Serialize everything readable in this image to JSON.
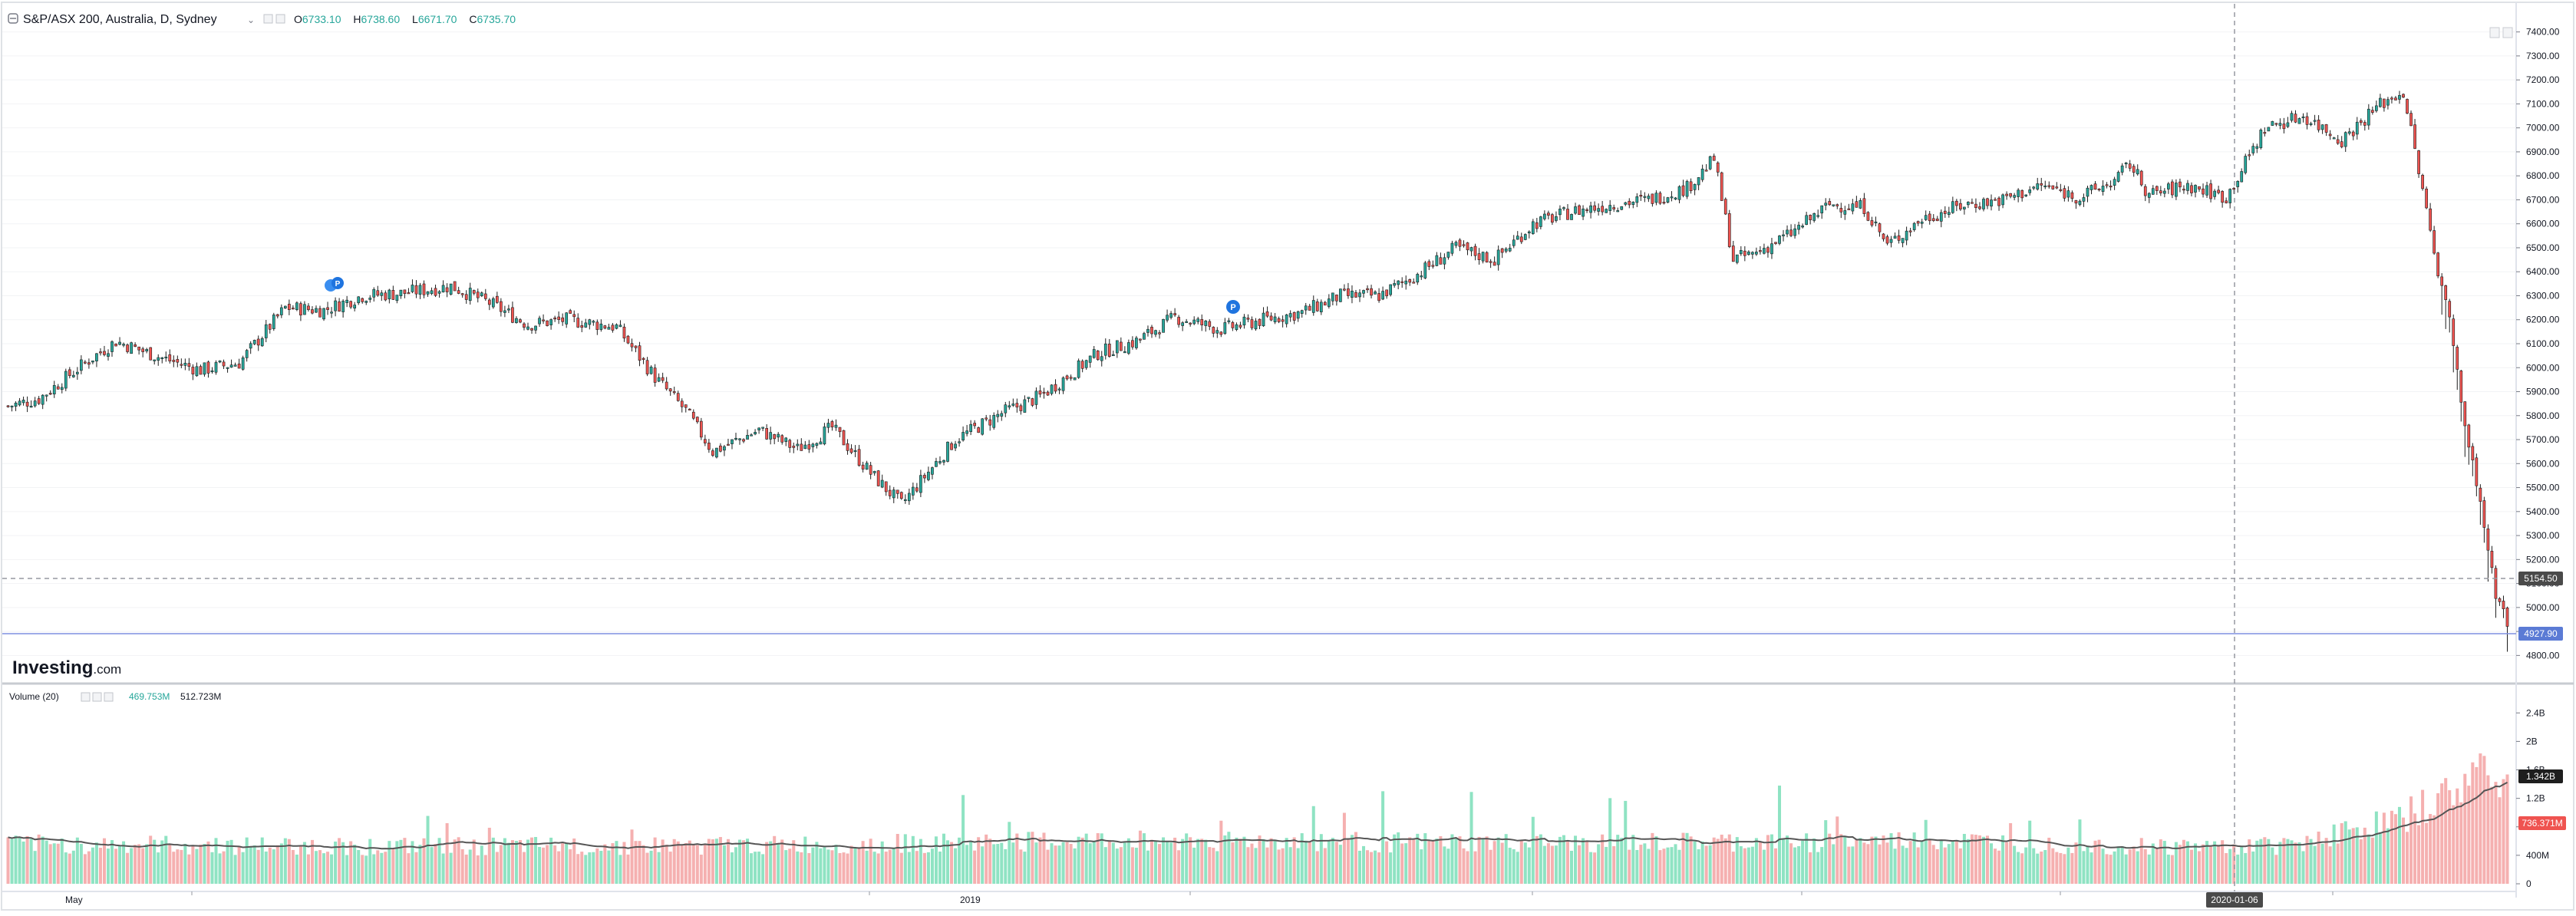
{
  "header": {
    "symbol": "S&P/ASX 200, Australia, D, Sydney",
    "dropdown_glyph": "⌄",
    "ohlc": [
      {
        "k": "O",
        "v": "6733.10"
      },
      {
        "k": "H",
        "v": "6738.60"
      },
      {
        "k": "L",
        "v": "6671.70"
      },
      {
        "k": "C",
        "v": "6735.70"
      }
    ]
  },
  "logo": {
    "bold": "Investing",
    "light": ".com"
  },
  "volume_header": {
    "title": "Volume (20)",
    "vol": "469.753M",
    "ma": "512.723M"
  },
  "price_axis": {
    "ticks": [
      "7400.00",
      "7300.00",
      "7200.00",
      "7100.00",
      "7000.00",
      "6900.00",
      "6800.00",
      "6700.00",
      "6600.00",
      "6500.00",
      "6400.00",
      "6300.00",
      "6200.00",
      "6100.00",
      "6000.00",
      "5900.00",
      "5800.00",
      "5700.00",
      "5600.00",
      "5500.00",
      "5400.00",
      "5300.00",
      "5200.00",
      "5100.00",
      "5000.00",
      "4900.00",
      "4800.00"
    ]
  },
  "volume_axis": {
    "ticks": [
      "2.4B",
      "2B",
      "1.6B",
      "1.2B",
      "800M",
      "400M",
      "0"
    ]
  },
  "crosshair": {
    "price_label": "5154.50",
    "date_label": "2020-01-06",
    "volume_label": "1.342B"
  },
  "last_price_label": "4927.90",
  "last_volume_label": "736.371M",
  "time_axis": {
    "labels": [
      "May",
      "2019"
    ]
  },
  "colors": {
    "up": "#26a69a",
    "down": "#ef5350",
    "vol_up": "#8fe3c3",
    "vol_down": "#f5b0b0",
    "ma": "#555555",
    "last": "#5b7bd5"
  },
  "chart_data": {
    "type": "candlestick",
    "title": "S&P/ASX 200, Australia, D, Sydney",
    "x_range": [
      "2018-04",
      "2020-03"
    ],
    "price_ylim": [
      4750,
      7450
    ],
    "volume_ylim": [
      0,
      2500000000
    ],
    "volume_ma_period": 20,
    "price_anchors": [
      [
        0,
        5840
      ],
      [
        8,
        5870
      ],
      [
        20,
        6020
      ],
      [
        28,
        6110
      ],
      [
        40,
        6040
      ],
      [
        50,
        5990
      ],
      [
        60,
        6020
      ],
      [
        72,
        6250
      ],
      [
        82,
        6240
      ],
      [
        92,
        6300
      ],
      [
        102,
        6310
      ],
      [
        115,
        6340
      ],
      [
        125,
        6270
      ],
      [
        135,
        6180
      ],
      [
        145,
        6200
      ],
      [
        158,
        6170
      ],
      [
        168,
        5960
      ],
      [
        176,
        5820
      ],
      [
        183,
        5650
      ],
      [
        195,
        5740
      ],
      [
        205,
        5660
      ],
      [
        214,
        5750
      ],
      [
        224,
        5560
      ],
      [
        232,
        5430
      ],
      [
        246,
        5700
      ],
      [
        258,
        5810
      ],
      [
        268,
        5880
      ],
      [
        283,
        6060
      ],
      [
        293,
        6110
      ],
      [
        303,
        6210
      ],
      [
        315,
        6160
      ],
      [
        326,
        6200
      ],
      [
        336,
        6230
      ],
      [
        346,
        6300
      ],
      [
        356,
        6300
      ],
      [
        366,
        6390
      ],
      [
        376,
        6500
      ],
      [
        386,
        6450
      ],
      [
        396,
        6600
      ],
      [
        406,
        6650
      ],
      [
        416,
        6680
      ],
      [
        426,
        6700
      ],
      [
        436,
        6750
      ],
      [
        443,
        6870
      ],
      [
        448,
        6450
      ],
      [
        454,
        6480
      ],
      [
        463,
        6560
      ],
      [
        473,
        6680
      ],
      [
        482,
        6670
      ],
      [
        488,
        6510
      ],
      [
        497,
        6620
      ],
      [
        508,
        6680
      ],
      [
        518,
        6700
      ],
      [
        528,
        6760
      ],
      [
        538,
        6710
      ],
      [
        547,
        6780
      ],
      [
        551,
        6850
      ],
      [
        556,
        6720
      ],
      [
        566,
        6760
      ],
      [
        576,
        6710
      ],
      [
        586,
        7000
      ],
      [
        596,
        7050
      ],
      [
        606,
        6950
      ],
      [
        616,
        7100
      ],
      [
        622,
        7150
      ],
      [
        626,
        6820
      ],
      [
        630,
        6480
      ],
      [
        634,
        6200
      ],
      [
        638,
        5760
      ],
      [
        642,
        5430
      ],
      [
        646,
        5050
      ],
      [
        649,
        4930
      ]
    ],
    "volume_anchors": [
      [
        0,
        560000000
      ],
      [
        100,
        520000000
      ],
      [
        200,
        540000000
      ],
      [
        300,
        610000000
      ],
      [
        400,
        560000000
      ],
      [
        500,
        600000000
      ],
      [
        560,
        520000000
      ],
      [
        590,
        540000000
      ],
      [
        620,
        880000000
      ],
      [
        636,
        1300000000
      ],
      [
        645,
        1750000000
      ],
      [
        649,
        1342000000
      ]
    ],
    "last_close": 4927.9,
    "crosshair_price": 5154.5,
    "crosshair_date": "2020-01-06",
    "crosshair_volume": 1342000000,
    "last_volume": 736371000,
    "legend_ohlc": {
      "open": 6733.1,
      "high": 6738.6,
      "low": 6671.7,
      "close": 6735.7
    },
    "volume_legend": {
      "volume": 469753000,
      "ma": 512723000
    }
  }
}
